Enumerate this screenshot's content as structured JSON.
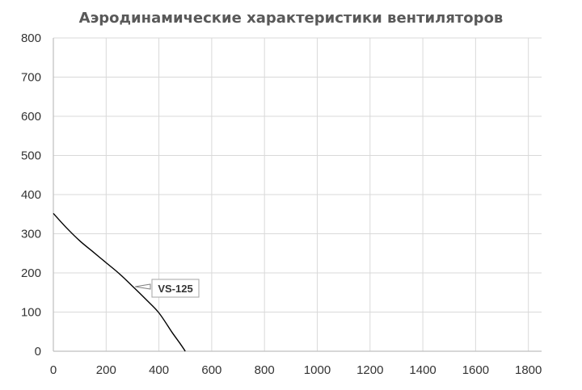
{
  "chart_data": {
    "type": "line",
    "title": "Аэродинамические характеристики вентиляторов",
    "xlabel": "",
    "ylabel": "",
    "xlim": [
      0,
      1850
    ],
    "ylim": [
      0,
      800
    ],
    "x_ticks": [
      0,
      200,
      400,
      600,
      800,
      1000,
      1200,
      1400,
      1600,
      1800
    ],
    "y_ticks": [
      0,
      100,
      200,
      300,
      400,
      500,
      600,
      700,
      800
    ],
    "grid": true,
    "series": [
      {
        "name": "VS-125",
        "color": "#000000",
        "x": [
          0,
          50,
          100,
          150,
          200,
          250,
          300,
          350,
          400,
          450,
          480,
          500
        ],
        "y": [
          352,
          315,
          282,
          254,
          226,
          198,
          166,
          133,
          98,
          48,
          20,
          0
        ]
      }
    ],
    "annotations": [
      {
        "text": "VS-125",
        "series": "VS-125",
        "point_x": 310,
        "point_y": 165
      }
    ]
  }
}
